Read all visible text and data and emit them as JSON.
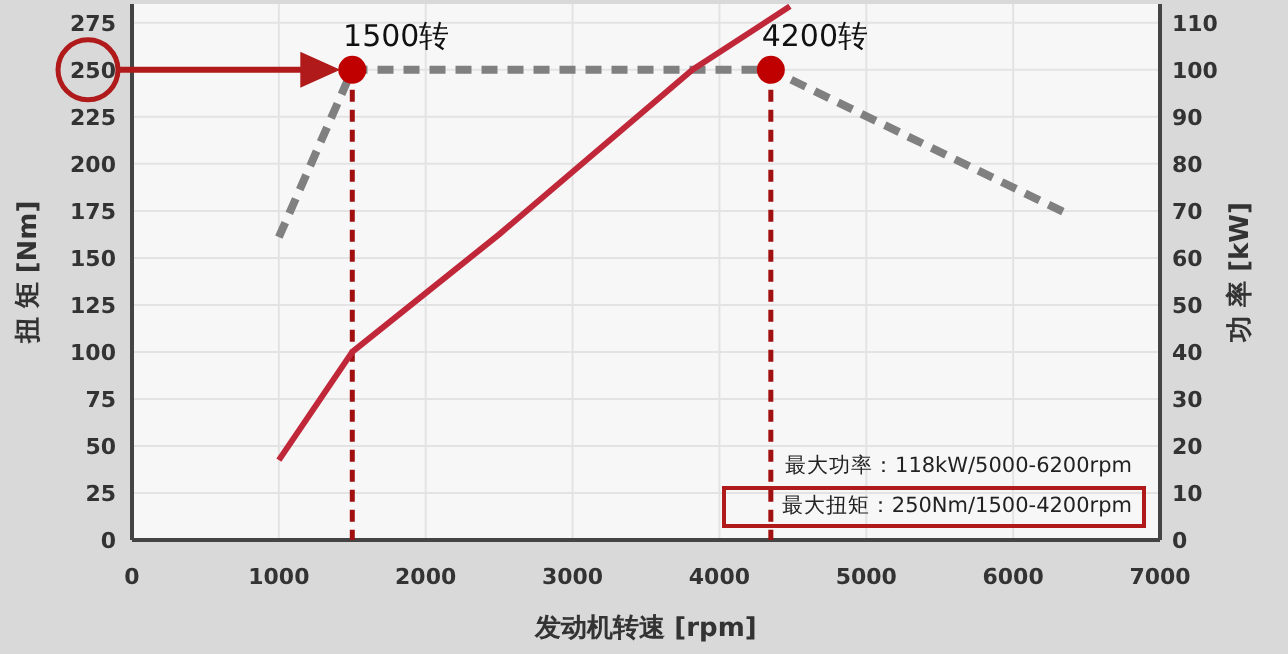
{
  "chart_data": {
    "type": "line",
    "xlabel": "发动机转速 [rpm]",
    "ylabel": "扭 矩 [Nm]",
    "y2label": "功 率 [kW]",
    "xlim": [
      0,
      7000
    ],
    "xticks": [
      0,
      1000,
      2000,
      3000,
      4000,
      5000,
      6000,
      7000
    ],
    "ylim": [
      0,
      285
    ],
    "yticks": [
      0,
      25,
      50,
      75,
      100,
      125,
      150,
      175,
      200,
      225,
      250,
      275
    ],
    "y2lim": [
      0,
      114
    ],
    "y2ticks": [
      0,
      10,
      20,
      30,
      40,
      50,
      60,
      70,
      80,
      90,
      100,
      110
    ],
    "grid": true,
    "series": [
      {
        "type": "line",
        "color": "#808080",
        "line_style": "dashed",
        "x": [
          1000,
          1500,
          4350,
          6380
        ],
        "values": [
          161,
          250,
          250,
          173
        ]
      },
      {
        "type": "line",
        "axis": "y2",
        "color": "#c0283a",
        "line_style": "solid",
        "x": [
          1000,
          1500,
          1600,
          2500,
          3816,
          4480
        ],
        "values": [
          17,
          40,
          42.5,
          65,
          100,
          113.5
        ]
      },
      {
        "type": "scatter",
        "color": "#c00000",
        "marker": "circle",
        "x": [
          1500,
          4350
        ],
        "values": [
          250,
          250
        ]
      }
    ],
    "ref_lines": [
      {
        "axis": "x",
        "value": 1500,
        "label": "1500转",
        "color": "#a01010",
        "line_style": "dashed"
      },
      {
        "axis": "x",
        "value": 4350,
        "label": "4200转",
        "color": "#a01010",
        "line_style": "dashed"
      }
    ],
    "annotations": [
      "最大功率：118kW/5000-6200rpm",
      "最大扭矩：250Nm/1500-4200rpm"
    ]
  }
}
